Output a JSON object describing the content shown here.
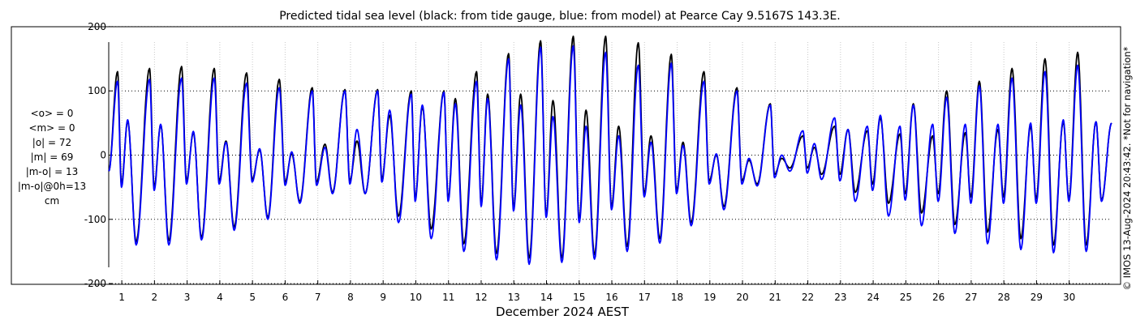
{
  "chart_data": {
    "type": "line",
    "title": "Predicted tidal sea level (black: from tide gauge, blue: from model) at Pearce Cay 9.5167S 143.3E.",
    "xlabel": "December 2024 AEST",
    "ylabel": "",
    "xlim": [
      0.6,
      31.3
    ],
    "ylim": [
      -210,
      210
    ],
    "y_ticks": [
      -200,
      -100,
      0,
      100,
      200
    ],
    "x_ticks": [
      1,
      2,
      3,
      4,
      5,
      6,
      7,
      8,
      9,
      10,
      11,
      12,
      13,
      14,
      15,
      16,
      17,
      18,
      19,
      20,
      21,
      22,
      23,
      24,
      25,
      26,
      27,
      28,
      29,
      30
    ],
    "grid": {
      "horizontal": "dotted",
      "vertical": "dotted-light"
    },
    "units": "cm",
    "series": [
      {
        "color": "#000000",
        "peaks": [
          [
            0.6,
            -25
          ],
          [
            0.87,
            130
          ],
          [
            0.99,
            -45
          ],
          [
            1.18,
            53
          ],
          [
            1.44,
            -135
          ],
          [
            1.85,
            135
          ],
          [
            1.99,
            -50
          ],
          [
            2.19,
            47
          ],
          [
            2.44,
            -133
          ],
          [
            2.83,
            138
          ],
          [
            2.98,
            -40
          ],
          [
            3.19,
            35
          ],
          [
            3.44,
            -128
          ],
          [
            3.83,
            135
          ],
          [
            3.98,
            -40
          ],
          [
            4.19,
            22
          ],
          [
            4.44,
            -112
          ],
          [
            4.82,
            128
          ],
          [
            4.99,
            -38
          ],
          [
            5.22,
            8
          ],
          [
            5.47,
            -97
          ],
          [
            5.82,
            118
          ],
          [
            6.0,
            -42
          ],
          [
            6.2,
            2
          ],
          [
            6.45,
            -72
          ],
          [
            6.83,
            105
          ],
          [
            6.96,
            -42
          ],
          [
            7.22,
            17
          ],
          [
            7.45,
            -58
          ],
          [
            7.83,
            102
          ],
          [
            7.98,
            -40
          ],
          [
            8.2,
            22
          ],
          [
            8.45,
            -60
          ],
          [
            8.83,
            102
          ],
          [
            8.96,
            -37
          ],
          [
            9.2,
            62
          ],
          [
            9.47,
            -95
          ],
          [
            9.86,
            100
          ],
          [
            9.98,
            -68
          ],
          [
            10.2,
            75
          ],
          [
            10.47,
            -115
          ],
          [
            10.86,
            100
          ],
          [
            10.99,
            -68
          ],
          [
            11.21,
            88
          ],
          [
            11.47,
            -138
          ],
          [
            11.86,
            130
          ],
          [
            12.0,
            -75
          ],
          [
            12.2,
            95
          ],
          [
            12.47,
            -153
          ],
          [
            12.84,
            158
          ],
          [
            12.99,
            -82
          ],
          [
            13.21,
            95
          ],
          [
            13.47,
            -160
          ],
          [
            13.82,
            178
          ],
          [
            13.99,
            -93
          ],
          [
            14.2,
            85
          ],
          [
            14.47,
            -160
          ],
          [
            14.82,
            185
          ],
          [
            15.0,
            -100
          ],
          [
            15.21,
            70
          ],
          [
            15.47,
            -155
          ],
          [
            15.81,
            185
          ],
          [
            15.99,
            -80
          ],
          [
            16.21,
            45
          ],
          [
            16.47,
            -142
          ],
          [
            16.81,
            175
          ],
          [
            16.99,
            -60
          ],
          [
            17.2,
            30
          ],
          [
            17.47,
            -130
          ],
          [
            17.82,
            157
          ],
          [
            17.98,
            -55
          ],
          [
            18.18,
            20
          ],
          [
            18.43,
            -105
          ],
          [
            18.82,
            130
          ],
          [
            18.98,
            -40
          ],
          [
            19.2,
            0
          ],
          [
            19.43,
            -80
          ],
          [
            19.83,
            105
          ],
          [
            19.98,
            -40
          ],
          [
            20.2,
            -8
          ],
          [
            20.45,
            -45
          ],
          [
            20.85,
            80
          ],
          [
            20.98,
            -30
          ],
          [
            21.2,
            -5
          ],
          [
            21.45,
            -20
          ],
          [
            21.85,
            30
          ],
          [
            21.98,
            -20
          ],
          [
            22.2,
            12
          ],
          [
            22.42,
            -30
          ],
          [
            22.82,
            45
          ],
          [
            22.98,
            -30
          ],
          [
            23.23,
            40
          ],
          [
            23.45,
            -58
          ],
          [
            23.82,
            38
          ],
          [
            23.98,
            -45
          ],
          [
            24.22,
            58
          ],
          [
            24.47,
            -75
          ],
          [
            24.82,
            33
          ],
          [
            24.98,
            -60
          ],
          [
            25.23,
            80
          ],
          [
            25.48,
            -90
          ],
          [
            25.82,
            30
          ],
          [
            25.99,
            -60
          ],
          [
            26.25,
            100
          ],
          [
            26.5,
            -108
          ],
          [
            26.82,
            35
          ],
          [
            26.99,
            -65
          ],
          [
            27.25,
            115
          ],
          [
            27.5,
            -120
          ],
          [
            27.82,
            40
          ],
          [
            27.99,
            -65
          ],
          [
            28.25,
            135
          ],
          [
            28.52,
            -130
          ],
          [
            28.82,
            45
          ],
          [
            28.99,
            -68
          ],
          [
            29.26,
            150
          ],
          [
            29.52,
            -140
          ],
          [
            29.82,
            52
          ],
          [
            29.99,
            -68
          ],
          [
            30.26,
            160
          ],
          [
            30.52,
            -140
          ],
          [
            30.82,
            52
          ],
          [
            30.99,
            -70
          ],
          [
            31.3,
            50
          ]
        ]
      },
      {
        "color": "#0000ff",
        "peaks": [
          [
            0.6,
            -25
          ],
          [
            0.87,
            115
          ],
          [
            0.99,
            -50
          ],
          [
            1.18,
            55
          ],
          [
            1.44,
            -140
          ],
          [
            1.85,
            118
          ],
          [
            1.99,
            -55
          ],
          [
            2.19,
            48
          ],
          [
            2.44,
            -140
          ],
          [
            2.83,
            120
          ],
          [
            2.98,
            -45
          ],
          [
            3.19,
            37
          ],
          [
            3.44,
            -132
          ],
          [
            3.83,
            120
          ],
          [
            3.98,
            -45
          ],
          [
            4.19,
            20
          ],
          [
            4.44,
            -117
          ],
          [
            4.82,
            112
          ],
          [
            4.99,
            -42
          ],
          [
            5.22,
            10
          ],
          [
            5.47,
            -100
          ],
          [
            5.82,
            105
          ],
          [
            6.0,
            -47
          ],
          [
            6.2,
            5
          ],
          [
            6.45,
            -75
          ],
          [
            6.83,
            100
          ],
          [
            6.96,
            -47
          ],
          [
            7.22,
            12
          ],
          [
            7.45,
            -60
          ],
          [
            7.83,
            100
          ],
          [
            7.98,
            -45
          ],
          [
            8.2,
            40
          ],
          [
            8.45,
            -60
          ],
          [
            8.83,
            100
          ],
          [
            8.96,
            -42
          ],
          [
            9.2,
            70
          ],
          [
            9.47,
            -105
          ],
          [
            9.86,
            95
          ],
          [
            9.98,
            -72
          ],
          [
            10.2,
            78
          ],
          [
            10.47,
            -130
          ],
          [
            10.86,
            98
          ],
          [
            10.99,
            -72
          ],
          [
            11.21,
            80
          ],
          [
            11.47,
            -150
          ],
          [
            11.86,
            115
          ],
          [
            12.0,
            -80
          ],
          [
            12.2,
            88
          ],
          [
            12.47,
            -163
          ],
          [
            12.84,
            150
          ],
          [
            12.99,
            -87
          ],
          [
            13.21,
            78
          ],
          [
            13.47,
            -170
          ],
          [
            13.82,
            168
          ],
          [
            13.99,
            -97
          ],
          [
            14.2,
            60
          ],
          [
            14.47,
            -167
          ],
          [
            14.82,
            170
          ],
          [
            15.0,
            -105
          ],
          [
            15.21,
            45
          ],
          [
            15.47,
            -162
          ],
          [
            15.81,
            160
          ],
          [
            15.99,
            -85
          ],
          [
            16.21,
            30
          ],
          [
            16.47,
            -150
          ],
          [
            16.81,
            140
          ],
          [
            16.99,
            -65
          ],
          [
            17.2,
            20
          ],
          [
            17.47,
            -137
          ],
          [
            17.82,
            143
          ],
          [
            17.98,
            -60
          ],
          [
            18.18,
            15
          ],
          [
            18.43,
            -110
          ],
          [
            18.82,
            115
          ],
          [
            18.98,
            -45
          ],
          [
            19.2,
            2
          ],
          [
            19.43,
            -85
          ],
          [
            19.83,
            100
          ],
          [
            19.98,
            -45
          ],
          [
            20.2,
            -5
          ],
          [
            20.45,
            -48
          ],
          [
            20.85,
            78
          ],
          [
            20.98,
            -35
          ],
          [
            21.2,
            0
          ],
          [
            21.45,
            -25
          ],
          [
            21.85,
            38
          ],
          [
            21.98,
            -28
          ],
          [
            22.2,
            18
          ],
          [
            22.42,
            -38
          ],
          [
            22.82,
            58
          ],
          [
            22.98,
            -40
          ],
          [
            23.23,
            40
          ],
          [
            23.45,
            -72
          ],
          [
            23.82,
            45
          ],
          [
            23.98,
            -55
          ],
          [
            24.22,
            62
          ],
          [
            24.47,
            -95
          ],
          [
            24.82,
            45
          ],
          [
            24.98,
            -70
          ],
          [
            25.23,
            78
          ],
          [
            25.48,
            -110
          ],
          [
            25.82,
            48
          ],
          [
            25.99,
            -72
          ],
          [
            26.25,
            90
          ],
          [
            26.5,
            -122
          ],
          [
            26.82,
            48
          ],
          [
            26.99,
            -75
          ],
          [
            27.25,
            108
          ],
          [
            27.5,
            -138
          ],
          [
            27.82,
            48
          ],
          [
            27.99,
            -75
          ],
          [
            28.25,
            120
          ],
          [
            28.52,
            -147
          ],
          [
            28.82,
            50
          ],
          [
            28.99,
            -75
          ],
          [
            29.26,
            130
          ],
          [
            29.52,
            -152
          ],
          [
            29.82,
            55
          ],
          [
            29.99,
            -72
          ],
          [
            30.26,
            140
          ],
          [
            30.52,
            -150
          ],
          [
            30.82,
            52
          ],
          [
            30.99,
            -72
          ],
          [
            31.3,
            50
          ]
        ]
      }
    ]
  },
  "stats": [
    "<o> = 0",
    "<m> = 0",
    "|o| = 72",
    "|m| = 69",
    "|m-o| = 13",
    "|m-o|@0h=13",
    "cm"
  ],
  "credit": "© IMOS 13-Aug-2024 20:43:42. *Not for navigation*"
}
